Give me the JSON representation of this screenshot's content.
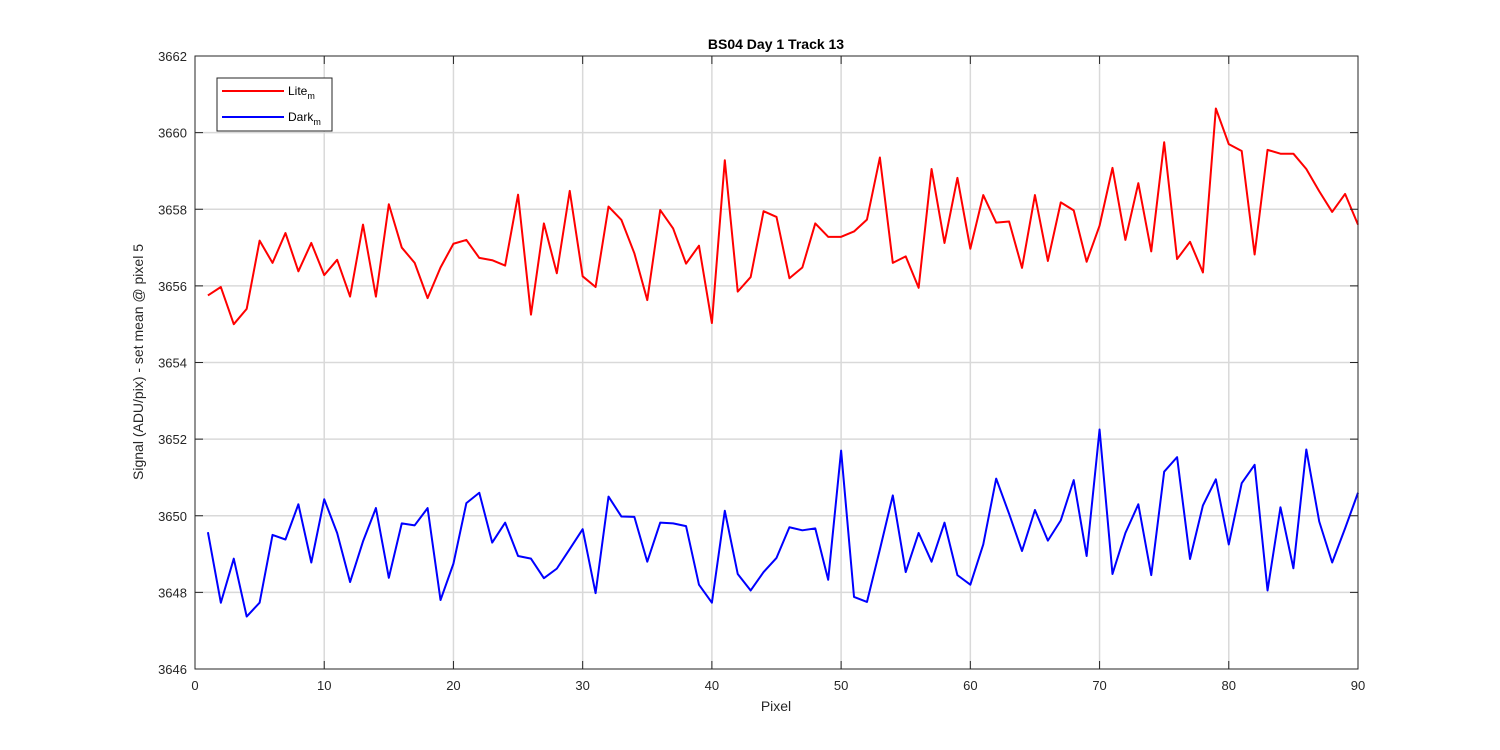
{
  "chart_data": {
    "type": "line",
    "title": "BS04 Day 1 Track 13",
    "xlabel": "Pixel",
    "ylabel": "Signal (ADU/pix) - set mean @ pixel 5",
    "xlim": [
      0,
      90
    ],
    "ylim": [
      3646,
      3662
    ],
    "xticks": [
      0,
      10,
      20,
      30,
      40,
      50,
      60,
      70,
      80,
      90
    ],
    "yticks": [
      3646,
      3648,
      3650,
      3652,
      3654,
      3656,
      3658,
      3660,
      3662
    ],
    "grid": true,
    "legend_position": "top-left",
    "x": [
      1,
      2,
      3,
      4,
      5,
      6,
      7,
      8,
      9,
      10,
      11,
      12,
      13,
      14,
      15,
      16,
      17,
      18,
      19,
      20,
      21,
      22,
      23,
      24,
      25,
      26,
      27,
      28,
      29,
      30,
      31,
      32,
      33,
      34,
      35,
      36,
      37,
      38,
      39,
      40,
      41,
      42,
      43,
      44,
      45,
      46,
      47,
      48,
      49,
      50,
      51,
      52,
      53,
      54,
      55,
      56,
      57,
      58,
      59,
      60,
      61,
      62,
      63,
      64,
      65,
      66,
      67,
      68,
      69,
      70,
      71,
      72,
      73,
      74,
      75,
      76,
      77,
      78,
      79,
      80,
      81,
      82,
      83,
      84,
      85,
      86,
      87,
      88,
      89,
      90
    ],
    "series": [
      {
        "name": "Lite",
        "name_sub": "m",
        "color": "#ff0000",
        "values": [
          3655.75,
          3655.97,
          3655.0,
          3655.4,
          3657.18,
          3656.6,
          3657.38,
          3656.38,
          3657.12,
          3656.28,
          3656.68,
          3655.72,
          3657.6,
          3655.72,
          3658.13,
          3657.0,
          3656.6,
          3655.68,
          3656.48,
          3657.1,
          3657.2,
          3656.73,
          3656.67,
          3656.53,
          3658.38,
          3655.25,
          3657.63,
          3656.33,
          3658.48,
          3656.25,
          3655.97,
          3658.07,
          3657.72,
          3656.85,
          3655.63,
          3657.98,
          3657.5,
          3656.58,
          3657.05,
          3655.03,
          3659.28,
          3655.85,
          3656.23,
          3657.95,
          3657.8,
          3656.2,
          3656.48,
          3657.63,
          3657.28,
          3657.28,
          3657.42,
          3657.73,
          3659.35,
          3656.6,
          3656.77,
          3655.95,
          3659.05,
          3657.12,
          3658.82,
          3656.97,
          3658.37,
          3657.65,
          3657.68,
          3656.47,
          3658.37,
          3656.65,
          3658.18,
          3657.97,
          3656.63,
          3657.57,
          3659.08,
          3657.2,
          3658.68,
          3656.9,
          3659.75,
          3656.7,
          3657.15,
          3656.35,
          3660.63,
          3659.7,
          3659.52,
          3656.82,
          3659.55,
          3659.45,
          3659.45,
          3659.05,
          3658.47,
          3657.93,
          3658.4,
          3657.6
        ]
      },
      {
        "name": "Dark",
        "name_sub": "m",
        "color": "#0000ff",
        "values": [
          3649.57,
          3647.73,
          3648.88,
          3647.37,
          3647.73,
          3649.5,
          3649.38,
          3650.3,
          3648.78,
          3650.43,
          3649.55,
          3648.27,
          3649.33,
          3650.2,
          3648.38,
          3649.8,
          3649.75,
          3650.2,
          3647.8,
          3648.75,
          3650.33,
          3650.6,
          3649.3,
          3649.82,
          3648.95,
          3648.88,
          3648.37,
          3648.62,
          3649.13,
          3649.65,
          3647.98,
          3650.5,
          3649.98,
          3649.97,
          3648.8,
          3649.82,
          3649.8,
          3649.73,
          3648.2,
          3647.73,
          3650.13,
          3648.48,
          3648.05,
          3648.53,
          3648.9,
          3649.7,
          3649.62,
          3649.67,
          3648.33,
          3651.7,
          3647.88,
          3647.75,
          3649.12,
          3650.53,
          3648.53,
          3649.55,
          3648.8,
          3649.82,
          3648.45,
          3648.2,
          3649.25,
          3650.97,
          3650.05,
          3649.08,
          3650.15,
          3649.35,
          3649.88,
          3650.93,
          3648.95,
          3652.25,
          3648.48,
          3649.55,
          3650.3,
          3648.45,
          3651.15,
          3651.53,
          3648.87,
          3650.27,
          3650.95,
          3649.25,
          3650.85,
          3651.33,
          3648.05,
          3650.22,
          3648.63,
          3651.73,
          3649.85,
          3648.78,
          3649.67,
          3650.6
        ]
      }
    ]
  }
}
